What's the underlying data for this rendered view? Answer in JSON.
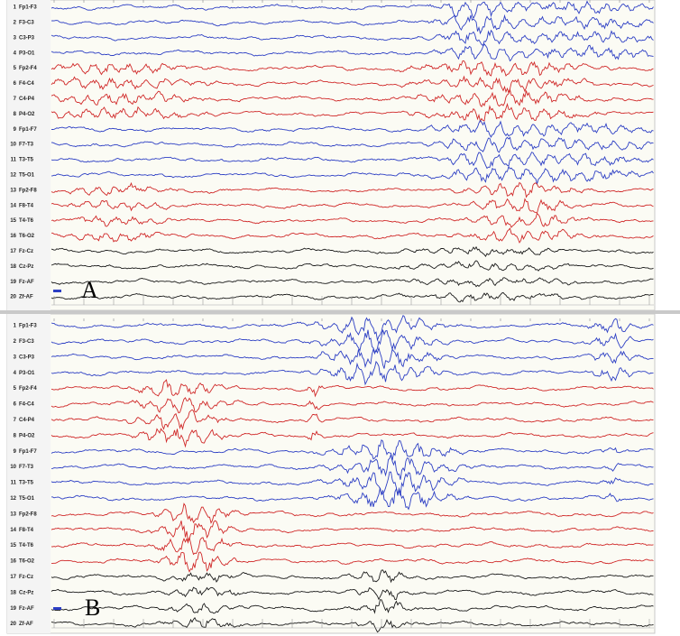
{
  "panels": [
    {
      "label": "A",
      "channels": [
        {
          "number": "1",
          "name": "Fp1-F3"
        },
        {
          "number": "2",
          "name": "F3-C3"
        },
        {
          "number": "3",
          "name": "C3-P3"
        },
        {
          "number": "4",
          "name": "P3-O1"
        },
        {
          "number": "5",
          "name": "Fp2-F4"
        },
        {
          "number": "6",
          "name": "F4-C4"
        },
        {
          "number": "7",
          "name": "C4-P4"
        },
        {
          "number": "8",
          "name": "P4-O2"
        },
        {
          "number": "9",
          "name": "Fp1-F7"
        },
        {
          "number": "10",
          "name": "F7-T3"
        },
        {
          "number": "11",
          "name": "T3-T5"
        },
        {
          "number": "12",
          "name": "T5-O1"
        },
        {
          "number": "13",
          "name": "Fp2-F8"
        },
        {
          "number": "14",
          "name": "F8-T4"
        },
        {
          "number": "15",
          "name": "T4-T6"
        },
        {
          "number": "16",
          "name": "T6-O2"
        },
        {
          "number": "17",
          "name": "Fz-Cz"
        },
        {
          "number": "18",
          "name": "Cz-Pz"
        },
        {
          "number": "19",
          "name": "Fz-AF"
        },
        {
          "number": "20",
          "name": "Zf-AF"
        }
      ]
    },
    {
      "label": "B",
      "channels": [
        {
          "number": "1",
          "name": "Fp1-F3"
        },
        {
          "number": "2",
          "name": "F3-C3"
        },
        {
          "number": "3",
          "name": "C3-P3"
        },
        {
          "number": "4",
          "name": "P3-O1"
        },
        {
          "number": "5",
          "name": "Fp2-F4"
        },
        {
          "number": "6",
          "name": "F4-C4"
        },
        {
          "number": "7",
          "name": "C4-P4"
        },
        {
          "number": "8",
          "name": "P4-O2"
        },
        {
          "number": "9",
          "name": "Fp1-F7"
        },
        {
          "number": "10",
          "name": "F7-T3"
        },
        {
          "number": "11",
          "name": "T3-T5"
        },
        {
          "number": "12",
          "name": "T5-O1"
        },
        {
          "number": "13",
          "name": "Fp2-F8"
        },
        {
          "number": "14",
          "name": "F8-T4"
        },
        {
          "number": "15",
          "name": "T4-T6"
        },
        {
          "number": "16",
          "name": "T6-O2"
        },
        {
          "number": "17",
          "name": "Fz-Cz"
        },
        {
          "number": "18",
          "name": "Cz-Pz"
        },
        {
          "number": "19",
          "name": "Fz-AF"
        },
        {
          "number": "20",
          "name": "Zf-AF"
        }
      ]
    }
  ]
}
